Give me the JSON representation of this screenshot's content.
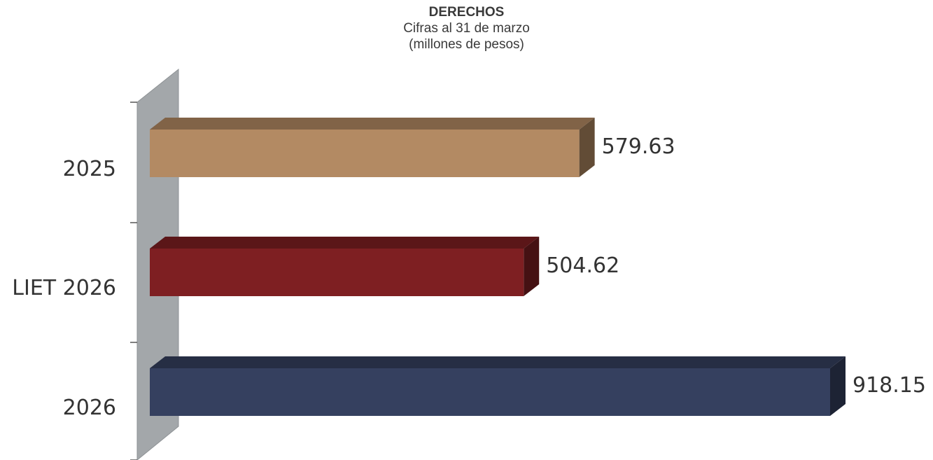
{
  "chart_data": {
    "type": "bar",
    "orientation": "horizontal",
    "title": "DERECHOS",
    "subtitle_lines": [
      "Cifras al 31 de marzo",
      "(millones de pesos)"
    ],
    "categories": [
      "2025",
      "LIET 2026",
      "2026"
    ],
    "values": [
      579.63,
      504.62,
      918.15
    ],
    "value_labels": [
      "579.63",
      "504.62",
      "918.15"
    ],
    "colors": [
      "#B38A63",
      "#7E1F22",
      "#35405F"
    ],
    "xlim": [
      0,
      918.15
    ],
    "grid": false,
    "legend": "none",
    "style": "3d"
  }
}
